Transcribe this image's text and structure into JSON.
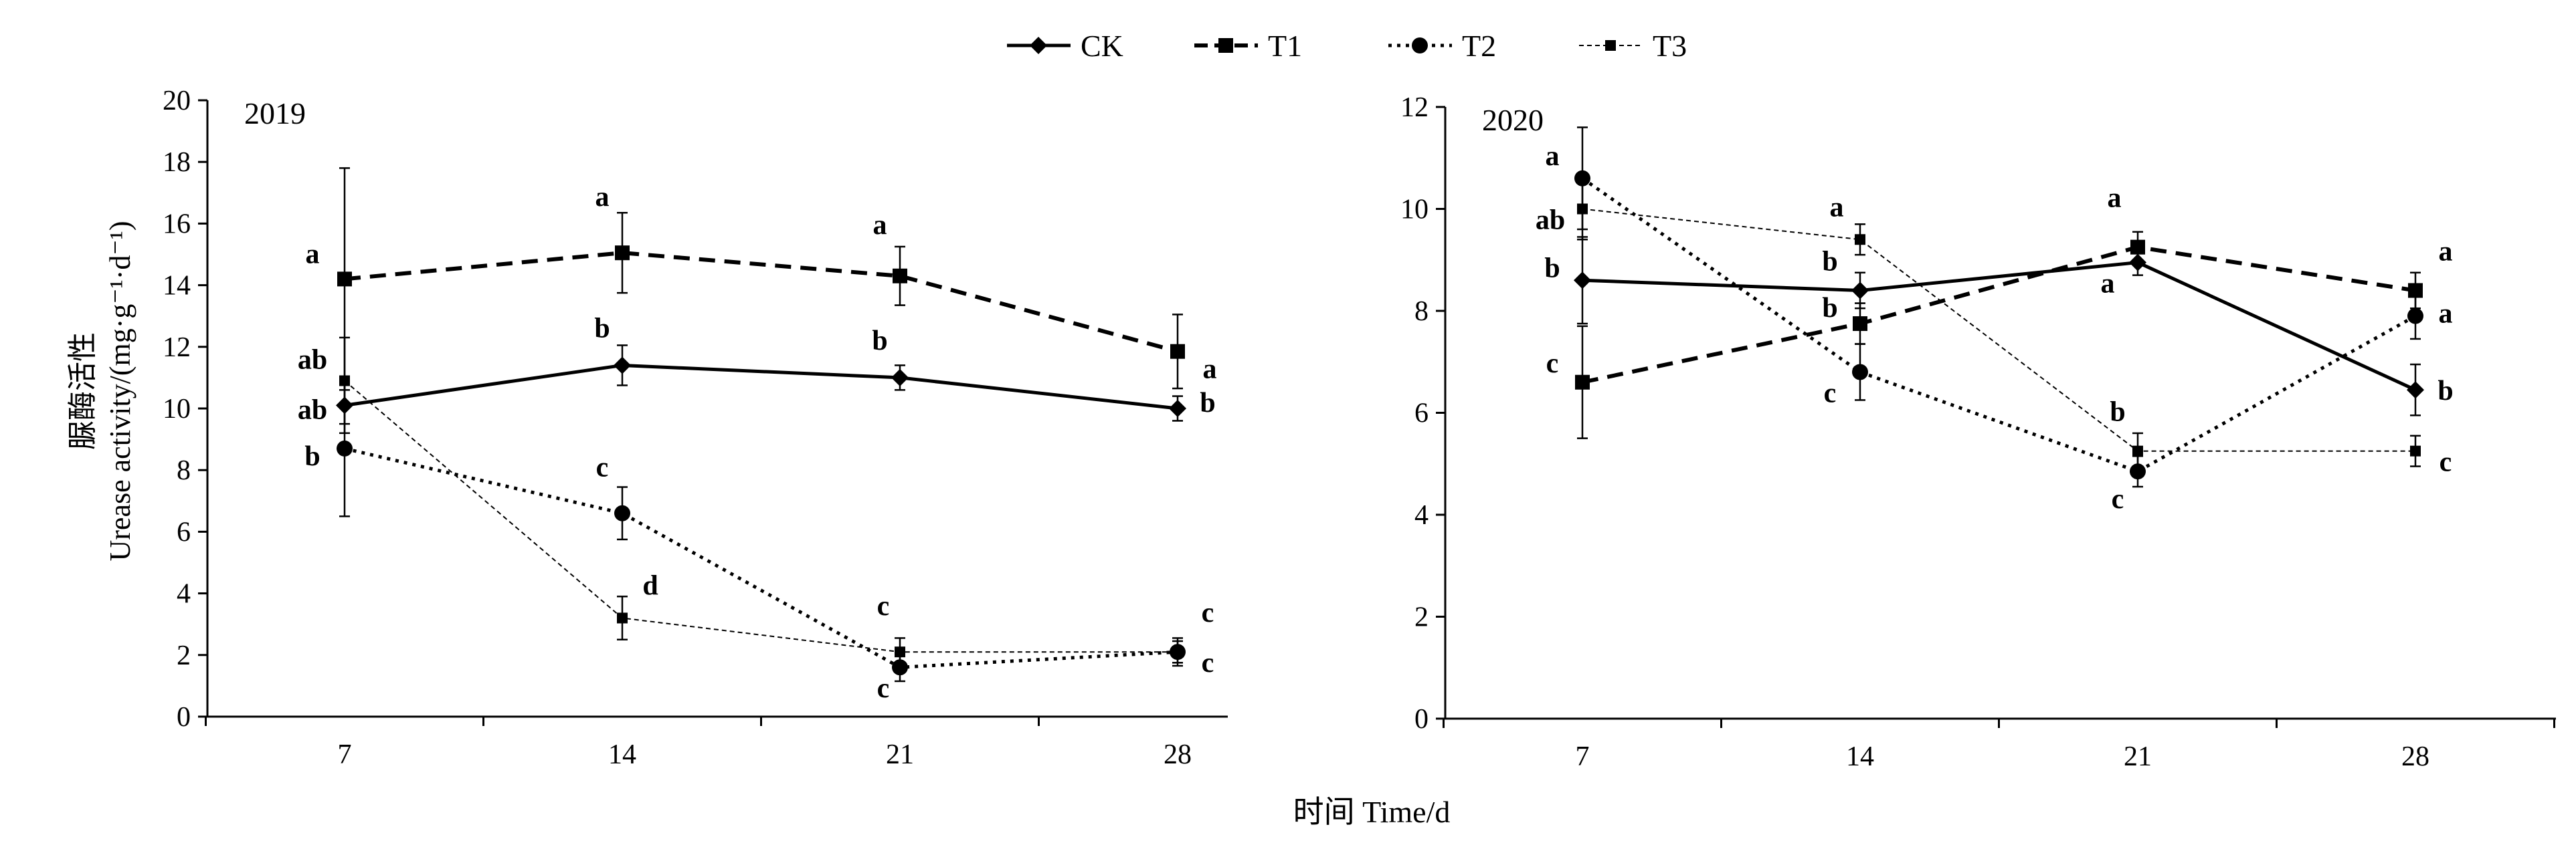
{
  "legend": [
    {
      "label": "CK",
      "style": "solid",
      "marker": "diamond"
    },
    {
      "label": "T1",
      "style": "dashed",
      "marker": "square"
    },
    {
      "label": "T2",
      "style": "dotted",
      "marker": "circle"
    },
    {
      "label": "T3",
      "style": "thin-dashed",
      "marker": "small-square"
    }
  ],
  "xlabel": "时间 Time/d",
  "ylabel_cn": "脲酶活性",
  "ylabel_en": "Urease activity/(mg·g⁻¹·d⁻¹)",
  "chart_data": [
    {
      "type": "line",
      "title": "2019",
      "categories": [
        "7",
        "14",
        "21",
        "28"
      ],
      "ylim": [
        0,
        20
      ],
      "yticks": [
        "0",
        "2",
        "4",
        "6",
        "8",
        "10",
        "12",
        "14",
        "16",
        "18",
        "20"
      ],
      "series": [
        {
          "name": "CK",
          "values": [
            10.1,
            11.4,
            11.0,
            10.0
          ],
          "errors": [
            0.9,
            0.65,
            0.4,
            0.4
          ],
          "letters": [
            "ab",
            "b",
            "b",
            "b"
          ]
        },
        {
          "name": "T1",
          "values": [
            14.2,
            15.05,
            14.3,
            11.85
          ],
          "errors": [
            3.6,
            1.3,
            0.95,
            1.2
          ],
          "letters": [
            "a",
            "a",
            "a",
            "a"
          ]
        },
        {
          "name": "T2",
          "values": [
            8.7,
            6.6,
            1.6,
            2.1
          ],
          "errors": [
            2.2,
            0.85,
            0.45,
            0.45
          ],
          "letters": [
            "b",
            "c",
            "c",
            "c"
          ]
        },
        {
          "name": "T3",
          "values": [
            10.9,
            3.2,
            2.1,
            2.1
          ],
          "errors": [
            1.4,
            0.7,
            0.45,
            0.35
          ],
          "letters": [
            "ab",
            "d",
            "c",
            "c"
          ]
        }
      ]
    },
    {
      "type": "line",
      "title": "2020",
      "categories": [
        "7",
        "14",
        "21",
        "28"
      ],
      "ylim": [
        0,
        12
      ],
      "yticks": [
        "0",
        "2",
        "4",
        "6",
        "8",
        "10",
        "12"
      ],
      "series": [
        {
          "name": "CK",
          "values": [
            8.6,
            8.4,
            8.95,
            6.45
          ],
          "errors": [
            0.85,
            0.35,
            0.25,
            0.5
          ],
          "letters": [
            "b",
            "b",
            "a",
            "b"
          ]
        },
        {
          "name": "T1",
          "values": [
            6.6,
            7.75,
            9.25,
            8.4
          ],
          "errors": [
            1.1,
            0.4,
            0.3,
            0.35
          ],
          "letters": [
            "c",
            "b",
            "a",
            "a"
          ]
        },
        {
          "name": "T2",
          "values": [
            10.6,
            6.8,
            4.85,
            7.9
          ],
          "errors": [
            1.0,
            0.55,
            0.3,
            0.45
          ],
          "letters": [
            "a",
            "c",
            "c",
            "a"
          ]
        },
        {
          "name": "T3",
          "values": [
            10.0,
            9.4,
            5.25,
            5.25
          ],
          "errors": [
            0.6,
            0.3,
            0.35,
            0.3
          ],
          "letters": [
            "ab",
            "a",
            "b",
            "c"
          ]
        }
      ]
    }
  ]
}
